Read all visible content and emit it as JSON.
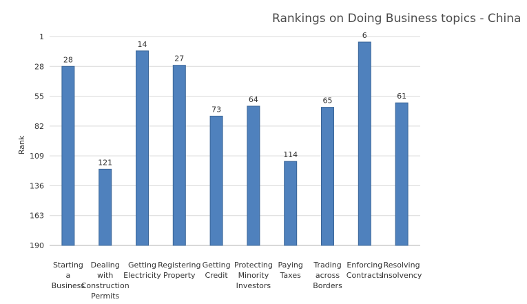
{
  "chart_data": {
    "type": "bar",
    "title": "Rankings on Doing Business topics - China",
    "xlabel": "",
    "ylabel": "Rank",
    "ylim": [
      1,
      190
    ],
    "y_reversed": true,
    "y_ticks": [
      1,
      28,
      55,
      82,
      109,
      136,
      163,
      190
    ],
    "grid": true,
    "color": "#4f81bd",
    "categories": [
      [
        "Starting",
        "a",
        "Business"
      ],
      [
        "Dealing",
        "with",
        "Construction",
        "Permits"
      ],
      [
        "Getting",
        "Electricity"
      ],
      [
        "Registering",
        "Property"
      ],
      [
        "Getting",
        "Credit"
      ],
      [
        "Protecting",
        "Minority",
        "Investors"
      ],
      [
        "Paying",
        "Taxes"
      ],
      [
        "Trading",
        "across",
        "Borders"
      ],
      [
        "Enforcing",
        "Contracts"
      ],
      [
        "Resolving",
        "Insolvency"
      ]
    ],
    "values": [
      28,
      121,
      14,
      27,
      73,
      64,
      114,
      65,
      6,
      61
    ]
  }
}
